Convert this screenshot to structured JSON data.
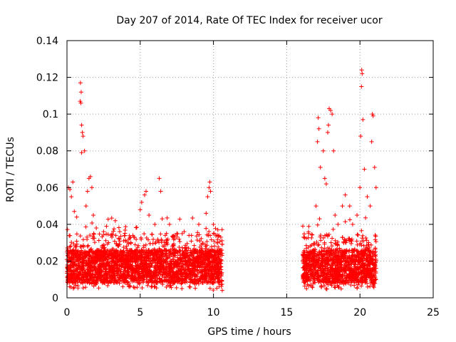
{
  "chart_data": {
    "type": "scatter",
    "title": "Day 207 of 2014, Rate Of TEC Index for receiver ucor",
    "xlabel": "GPS time / hours",
    "ylabel": "ROTI / TECUs",
    "xlim": [
      0,
      25
    ],
    "ylim": [
      0,
      0.14
    ],
    "xticks": [
      "0",
      "5",
      "10",
      "15",
      "20",
      "25"
    ],
    "yticks": [
      "0",
      "0.02",
      "0.04",
      "0.06",
      "0.08",
      "0.1",
      "0.12",
      "0.14"
    ],
    "grid": true,
    "marker": "+",
    "color": "#ff0000",
    "coverage": [
      [
        0,
        10.6
      ],
      [
        16.1,
        21.1
      ]
    ],
    "series": [
      {
        "points": [
          [
            0.1,
            0.06
          ],
          [
            0.2,
            0.059
          ],
          [
            0.3,
            0.055
          ],
          [
            0.4,
            0.063
          ],
          [
            0.5,
            0.047
          ],
          [
            0.9,
            0.107
          ],
          [
            0.95,
            0.106
          ],
          [
            0.92,
            0.117
          ],
          [
            0.97,
            0.112
          ],
          [
            1.0,
            0.094
          ],
          [
            1.05,
            0.09
          ],
          [
            1.1,
            0.088
          ],
          [
            1.0,
            0.079
          ],
          [
            1.2,
            0.08
          ],
          [
            1.5,
            0.065
          ],
          [
            1.6,
            0.066
          ],
          [
            1.4,
            0.058
          ],
          [
            1.7,
            0.06
          ],
          [
            1.3,
            0.05
          ],
          [
            1.8,
            0.045
          ],
          [
            2.0,
            0.038
          ],
          [
            2.5,
            0.036
          ],
          [
            3.0,
            0.034
          ],
          [
            3.3,
            0.042
          ],
          [
            3.6,
            0.036
          ],
          [
            4.0,
            0.031
          ],
          [
            4.5,
            0.034
          ],
          [
            5.0,
            0.048
          ],
          [
            5.1,
            0.052
          ],
          [
            5.3,
            0.056
          ],
          [
            5.4,
            0.058
          ],
          [
            5.6,
            0.045
          ],
          [
            6.0,
            0.04
          ],
          [
            6.3,
            0.065
          ],
          [
            6.4,
            0.058
          ],
          [
            6.5,
            0.043
          ],
          [
            7.0,
            0.04
          ],
          [
            7.5,
            0.035
          ],
          [
            8.0,
            0.036
          ],
          [
            8.5,
            0.034
          ],
          [
            9.0,
            0.04
          ],
          [
            9.5,
            0.046
          ],
          [
            9.6,
            0.055
          ],
          [
            9.7,
            0.06
          ],
          [
            9.75,
            0.063
          ],
          [
            9.8,
            0.058
          ],
          [
            10.0,
            0.04
          ],
          [
            10.3,
            0.037
          ],
          [
            10.5,
            0.033
          ],
          [
            10.6,
            0.004
          ],
          [
            16.1,
            0.039
          ],
          [
            16.5,
            0.035
          ],
          [
            17.0,
            0.05
          ],
          [
            17.1,
            0.085
          ],
          [
            17.15,
            0.098
          ],
          [
            17.2,
            0.092
          ],
          [
            17.3,
            0.071
          ],
          [
            17.5,
            0.08
          ],
          [
            17.6,
            0.065
          ],
          [
            17.7,
            0.062
          ],
          [
            17.8,
            0.09
          ],
          [
            17.85,
            0.094
          ],
          [
            17.9,
            0.103
          ],
          [
            18.0,
            0.102
          ],
          [
            18.1,
            0.1
          ],
          [
            18.2,
            0.08
          ],
          [
            18.3,
            0.045
          ],
          [
            18.5,
            0.04
          ],
          [
            18.8,
            0.05
          ],
          [
            19.0,
            0.056
          ],
          [
            19.3,
            0.05
          ],
          [
            19.5,
            0.04
          ],
          [
            19.8,
            0.045
          ],
          [
            20.0,
            0.06
          ],
          [
            20.05,
            0.088
          ],
          [
            20.1,
            0.115
          ],
          [
            20.12,
            0.124
          ],
          [
            20.15,
            0.122
          ],
          [
            20.2,
            0.097
          ],
          [
            20.3,
            0.07
          ],
          [
            20.5,
            0.055
          ],
          [
            20.7,
            0.05
          ],
          [
            20.8,
            0.085
          ],
          [
            20.85,
            0.1
          ],
          [
            20.9,
            0.099
          ],
          [
            21.0,
            0.071
          ],
          [
            21.1,
            0.06
          ]
        ]
      }
    ]
  }
}
